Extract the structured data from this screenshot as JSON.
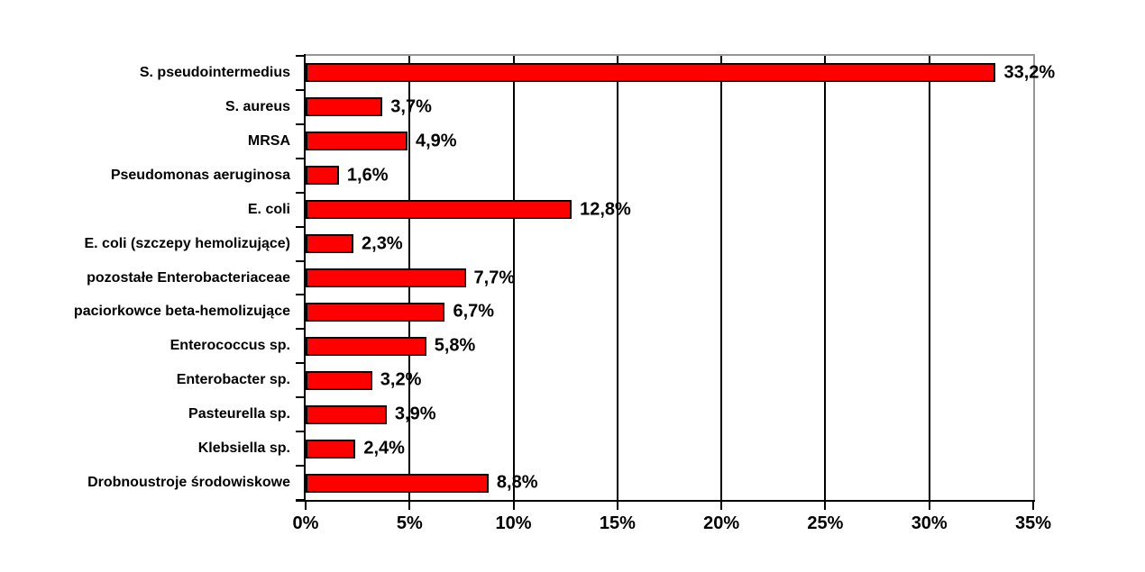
{
  "chart_data": {
    "type": "bar",
    "orientation": "horizontal",
    "title": "",
    "xlabel": "",
    "ylabel": "",
    "xlim": [
      0,
      35
    ],
    "grid": true,
    "legend": false,
    "categories": [
      "S. pseudointermedius",
      "S. aureus",
      "MRSA",
      "Pseudomonas aeruginosa",
      "E. coli",
      "E. coli (szczepy hemolizujące)",
      "pozostałe Enterobacteriaceae",
      "paciorkowce beta-hemolizujące",
      "Enterococcus sp.",
      "Enterobacter sp.",
      "Pasteurella sp.",
      "Klebsiella sp.",
      "Drobnoustroje środowiskowe"
    ],
    "values": [
      33.2,
      3.7,
      4.9,
      1.6,
      12.8,
      2.3,
      7.7,
      6.7,
      5.8,
      3.2,
      3.9,
      2.4,
      8.8
    ],
    "value_labels": [
      "33,2%",
      "3,7%",
      "4,9%",
      "1,6%",
      "12,8%",
      "2,3%",
      "7,7%",
      "6,7%",
      "5,8%",
      "3,2%",
      "3,9%",
      "2,4%",
      "8,8%"
    ],
    "xtick_values": [
      0,
      5,
      10,
      15,
      20,
      25,
      30,
      35
    ],
    "xtick_labels": [
      "0%",
      "5%",
      "10%",
      "15%",
      "20%",
      "25%",
      "30%",
      "35%"
    ],
    "gridline_values": [
      5,
      10,
      15,
      20,
      25,
      30
    ],
    "bar_color": "#ff0000",
    "bar_border_color": "#000000",
    "gridline_color": "#000000",
    "plot_border_color": "#969696",
    "text_color": "#000000"
  }
}
